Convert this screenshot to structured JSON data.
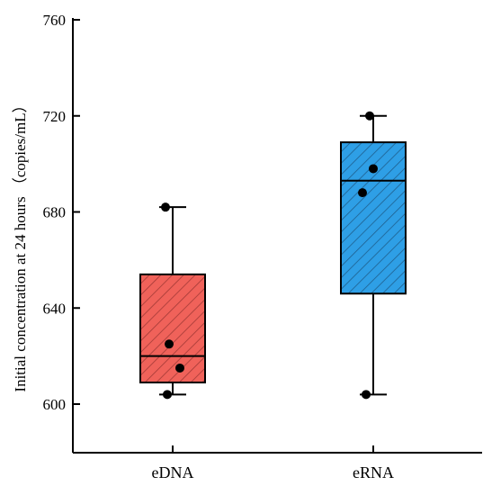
{
  "chart_data": {
    "type": "box",
    "ylabel": "Initial concentration at 24 hours （copies/mL）",
    "ylim": [
      600,
      760
    ],
    "yticks": [
      600,
      640,
      680,
      720,
      760
    ],
    "grid": false,
    "categories": [
      "eDNA",
      "eRNA"
    ],
    "boxes": [
      {
        "category": "eDNA",
        "whisker_low": 604,
        "q1": 609,
        "median": 620,
        "q3": 654,
        "whisker_high": 682,
        "points": [
          604,
          615,
          625,
          682
        ],
        "fill": "#f0625a",
        "hatch_color": "#a33a36"
      },
      {
        "category": "eRNA",
        "whisker_low": 604,
        "q1": 646,
        "median": 693,
        "q3": 709,
        "whisker_high": 720,
        "points": [
          604,
          688,
          698,
          720
        ],
        "fill": "#2e9fe6",
        "hatch_color": "#1f5f8e"
      }
    ]
  }
}
